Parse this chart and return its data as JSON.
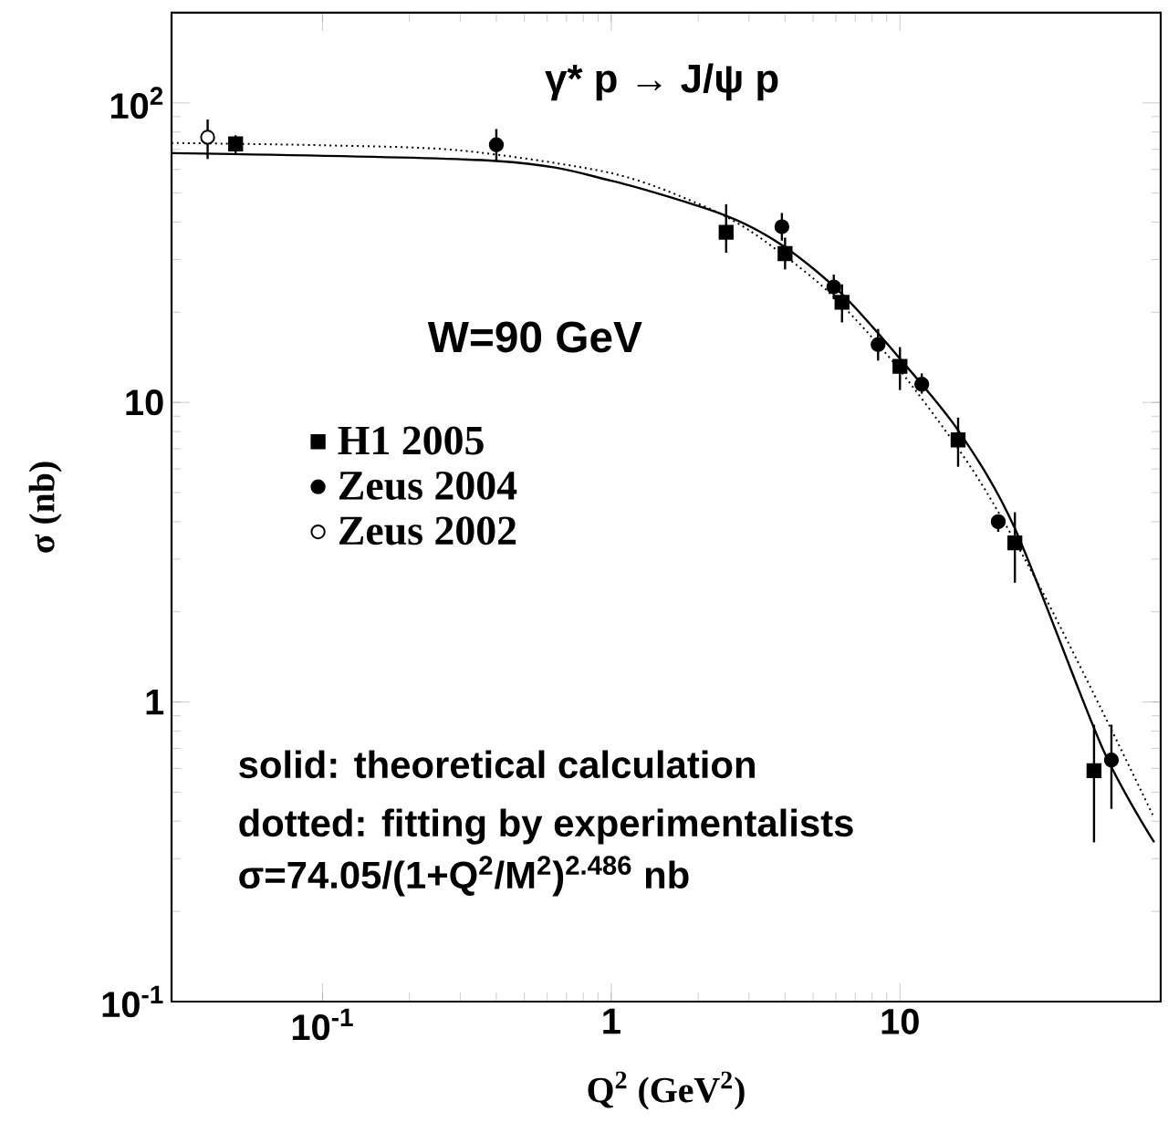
{
  "chart_data": {
    "type": "scatter",
    "title": "γ* p → J/ψ p",
    "xlabel": "Q$^{2}$ (GeV$^{2}$)",
    "ylabel": "σ (nb)",
    "log": "xy",
    "xlim": [
      0.03,
      80
    ],
    "ylim": [
      0.1,
      200
    ],
    "xticks": [
      {
        "value": 0.1,
        "label": "10$^{-1}$"
      },
      1,
      10
    ],
    "yticks": [
      {
        "value": 0.1,
        "label": "10$^{-1}$"
      },
      1,
      10,
      {
        "value": 100,
        "label": "10$^{2}$"
      }
    ],
    "legend": "left",
    "annotations": [
      "W=90 GeV",
      "solid: theoretical calculation",
      "dotted: fitting by experimentalists",
      "σ=74.05/(1+Q$^{2}$/M$^{2}$)$^{2.486}$ nb"
    ],
    "series": [
      {
        "name": "H1 2005",
        "marker": "square",
        "color": "#000000",
        "x": [
          0.05,
          2.5,
          4.0,
          6.3,
          10,
          15.9,
          25,
          47
        ],
        "values": [
          73,
          37,
          31.4,
          21.6,
          13.2,
          7.5,
          3.4,
          0.59
        ],
        "errors": [
          [
            68,
            78
          ],
          [
            31.6,
            45.9
          ],
          [
            27.8,
            35.5
          ],
          [
            18.5,
            24.8
          ],
          [
            11.0,
            15.3
          ],
          [
            6.1,
            8.9
          ],
          [
            2.5,
            4.3
          ],
          [
            0.34,
            0.84
          ]
        ]
      },
      {
        "name": "Zeus 2004",
        "marker": "circle",
        "color": "#000000",
        "x": [
          0.4,
          3.9,
          5.9,
          8.4,
          11.9,
          21.9,
          54
        ],
        "values": [
          72.5,
          38.6,
          24.3,
          15.6,
          11.5,
          4.0,
          0.64
        ],
        "errors": [
          [
            64,
            81.8
          ],
          [
            34.7,
            42.9
          ],
          [
            22.1,
            26.7
          ],
          [
            13.8,
            17.6
          ],
          [
            10.7,
            12.5
          ],
          [
            3.7,
            4.2
          ],
          [
            0.44,
            0.84
          ]
        ]
      },
      {
        "name": "Zeus 2002",
        "marker": "circle",
        "color": "#ffffff",
        "x": [
          0.04
        ],
        "values": [
          76.8
        ],
        "errors": [
          [
            65,
            88
          ]
        ]
      },
      {
        "type": "line",
        "line_style": "solid",
        "color": "#000000",
        "x": [
          0.03,
          0.4,
          1,
          2.5,
          4,
          6.3,
          10,
          16,
          25,
          50,
          76
        ],
        "values": [
          68,
          64,
          55,
          42,
          33,
          23,
          14,
          8.0,
          3.8,
          0.71,
          0.34
        ]
      },
      {
        "type": "line",
        "line_style": "dotted",
        "color": "#000000",
        "x": [
          0.03,
          0.1,
          0.3,
          1,
          2,
          3,
          5,
          7,
          10,
          15,
          20,
          30,
          50,
          76
        ],
        "values": [
          73.5,
          72.2,
          69.4,
          58.3,
          46.1,
          37.6,
          26.0,
          19.0,
          12.8,
          7.6,
          5.0,
          2.5,
          0.94,
          0.41
        ]
      }
    ]
  }
}
